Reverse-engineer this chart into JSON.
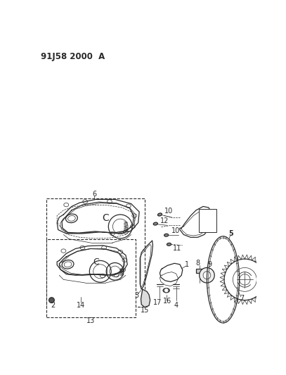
{
  "title": "91J58 2000  A",
  "bg_color": "#ffffff",
  "line_color": "#2a2a2a",
  "fig_width": 4.07,
  "fig_height": 5.33,
  "dpi": 100
}
